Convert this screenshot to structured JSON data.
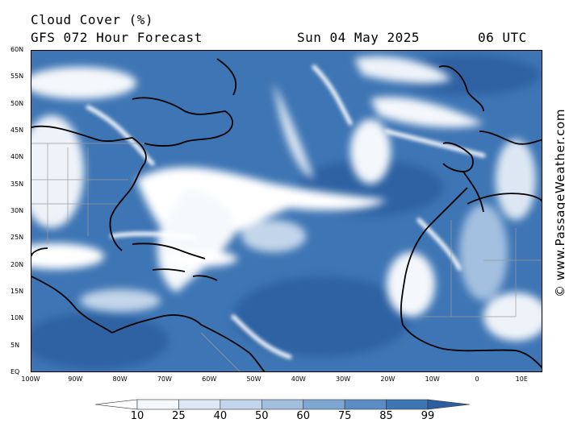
{
  "header": {
    "title": "Cloud Cover (%)",
    "subtitle": "GFS 072 Hour Forecast",
    "date": "Sun 04 May 2025",
    "time": "06 UTC"
  },
  "watermark": "© www.PassageWeather.com",
  "map": {
    "lat_labels": [
      "60N",
      "55N",
      "50N",
      "45N",
      "40N",
      "35N",
      "30N",
      "25N",
      "20N",
      "15N",
      "10N",
      "5N",
      "EQ"
    ],
    "lon_labels": [
      "100W",
      "90W",
      "80W",
      "70W",
      "60W",
      "50W",
      "40W",
      "30W",
      "20W",
      "10W",
      "0",
      "10E"
    ]
  },
  "legend": {
    "levels": [
      "10",
      "25",
      "40",
      "50",
      "60",
      "75",
      "85",
      "99"
    ],
    "colors": [
      "#ffffff",
      "#f4f7fb",
      "#dde7f3",
      "#c3d5ea",
      "#a3bfdf",
      "#7fa6d1",
      "#5b8cc2",
      "#3e75b4",
      "#2d5fa0"
    ]
  }
}
